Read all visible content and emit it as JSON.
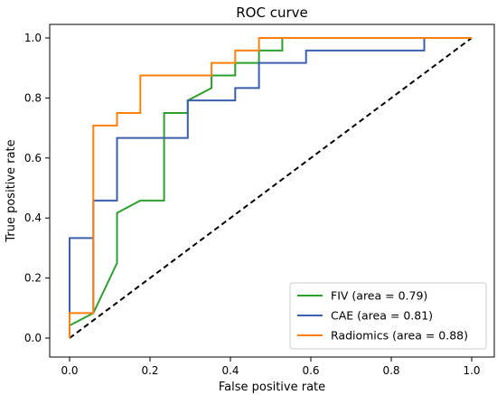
{
  "chart_data": {
    "type": "line",
    "title": "ROC curve",
    "xlabel": "False positive rate",
    "ylabel": "True positive rate",
    "xlim": [
      0.0,
      1.0
    ],
    "ylim": [
      0.0,
      1.0
    ],
    "xticks": [
      "0.0",
      "0.2",
      "0.4",
      "0.6",
      "0.8",
      "1.0"
    ],
    "yticks": [
      "0.0",
      "0.2",
      "0.4",
      "0.6",
      "0.8",
      "1.0"
    ],
    "grid": false,
    "legend_position": "bottom-right",
    "series": [
      {
        "name": "FIV (area = 0.79)",
        "color": "#2ca02c",
        "x": [
          0.0,
          0.0,
          0.059,
          0.118,
          0.118,
          0.176,
          0.235,
          0.235,
          0.294,
          0.294,
          0.353,
          0.353,
          0.412,
          0.412,
          0.471,
          0.471,
          0.529,
          0.529,
          1.0
        ],
        "y": [
          0.0,
          0.042,
          0.083,
          0.25,
          0.417,
          0.458,
          0.458,
          0.75,
          0.75,
          0.792,
          0.833,
          0.875,
          0.875,
          0.917,
          0.917,
          0.958,
          0.958,
          1.0,
          1.0
        ]
      },
      {
        "name": "CAE (area = 0.81)",
        "color": "#3a5fad",
        "x": [
          0.0,
          0.0,
          0.059,
          0.059,
          0.059,
          0.118,
          0.118,
          0.294,
          0.294,
          0.412,
          0.412,
          0.471,
          0.471,
          0.588,
          0.588,
          0.882,
          0.882,
          1.0
        ],
        "y": [
          0.0,
          0.333,
          0.333,
          0.083,
          0.458,
          0.458,
          0.667,
          0.667,
          0.792,
          0.792,
          0.833,
          0.833,
          0.917,
          0.917,
          0.958,
          0.958,
          1.0,
          1.0
        ]
      },
      {
        "name": "Radiomics (area = 0.88)",
        "color": "#ff7f0e",
        "x": [
          0.0,
          0.0,
          0.059,
          0.059,
          0.118,
          0.118,
          0.176,
          0.176,
          0.353,
          0.353,
          0.412,
          0.412,
          0.471,
          0.471,
          1.0
        ],
        "y": [
          0.0,
          0.083,
          0.083,
          0.708,
          0.708,
          0.75,
          0.75,
          0.875,
          0.875,
          0.917,
          0.917,
          0.958,
          0.958,
          1.0,
          1.0
        ]
      }
    ],
    "reference_line": {
      "x": [
        0.0,
        1.0
      ],
      "y": [
        0.0,
        1.0
      ],
      "style": "dashed",
      "color": "#000000"
    }
  }
}
